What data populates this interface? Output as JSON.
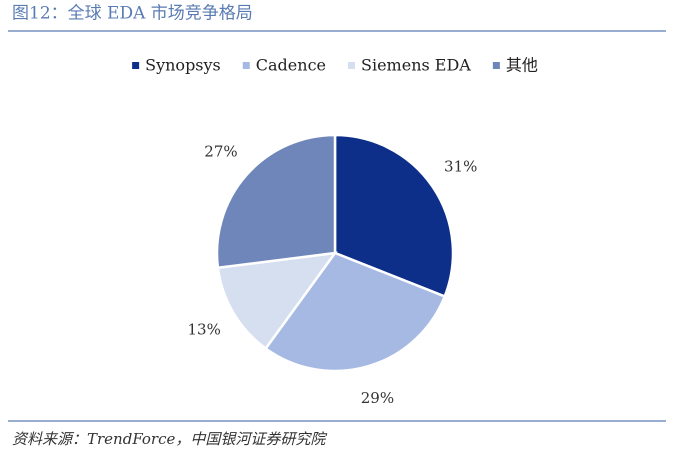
{
  "chart_data": {
    "type": "pie",
    "title": "图12：全球 EDA 市场竞争格局",
    "categories": [
      "Synopsys",
      "Cadence",
      "Siemens EDA",
      "其他"
    ],
    "values": [
      31,
      29,
      13,
      27
    ],
    "value_labels": [
      "31%",
      "29%",
      "13%",
      "27%"
    ],
    "colors": [
      "#0d2f8a",
      "#a6b9e3",
      "#d5dff0",
      "#6e86b9"
    ],
    "legend": "top",
    "source": "资料来源：TrendForce，中国银河证券研究院"
  }
}
